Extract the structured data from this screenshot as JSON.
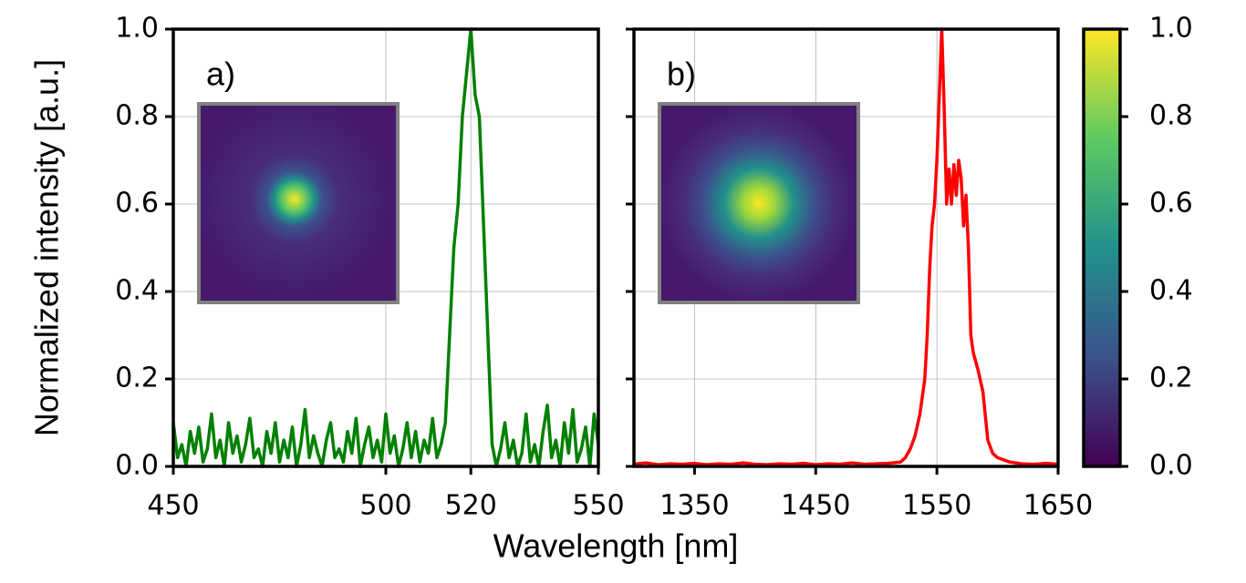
{
  "xlabel": "Wavelength [nm]",
  "ylabel": "Normalized intensity [a.u.]",
  "chart_data": [
    {
      "type": "line",
      "annotation": "a)",
      "color": "#008000",
      "grid": true,
      "xlim": [
        450,
        550
      ],
      "xticks": [
        450,
        500,
        520,
        550
      ],
      "ylim": [
        0,
        1
      ],
      "yticks": [
        {
          "value": 0,
          "label": "0.0"
        },
        {
          "value": 0.2,
          "label": "0.2"
        },
        {
          "value": 0.4,
          "label": "0.4"
        },
        {
          "value": 0.6,
          "label": "0.6"
        },
        {
          "value": 0.8,
          "label": "0.8"
        },
        {
          "value": 1,
          "label": "1.0"
        }
      ],
      "ytick_labels": true,
      "x": [
        450,
        451,
        452,
        453,
        454,
        455,
        456,
        457,
        458,
        459,
        460,
        461,
        462,
        463,
        464,
        465,
        466,
        467,
        468,
        469,
        470,
        471,
        472,
        473,
        474,
        475,
        476,
        477,
        478,
        479,
        480,
        481,
        482,
        483,
        484,
        485,
        486,
        487,
        488,
        489,
        490,
        491,
        492,
        493,
        494,
        495,
        496,
        497,
        498,
        499,
        500,
        501,
        502,
        503,
        504,
        505,
        506,
        507,
        508,
        509,
        510,
        511,
        512,
        513,
        514,
        515,
        516,
        517,
        518,
        519,
        520,
        521,
        522,
        523,
        524,
        525,
        526,
        527,
        528,
        529,
        530,
        531,
        532,
        533,
        534,
        535,
        536,
        537,
        538,
        539,
        540,
        541,
        542,
        543,
        544,
        545,
        546,
        547,
        548,
        549,
        550
      ],
      "values": [
        0.1,
        0.02,
        0.05,
        0.0,
        0.08,
        0.03,
        0.09,
        0.01,
        0.04,
        0.12,
        0.02,
        0.06,
        0.0,
        0.1,
        0.03,
        0.07,
        0.01,
        0.05,
        0.11,
        0.02,
        0.04,
        0.0,
        0.08,
        0.03,
        0.1,
        0.01,
        0.06,
        0.02,
        0.09,
        0.0,
        0.05,
        0.13,
        0.02,
        0.07,
        0.03,
        0.0,
        0.06,
        0.1,
        0.02,
        0.04,
        0.01,
        0.08,
        0.03,
        0.11,
        0.0,
        0.05,
        0.09,
        0.02,
        0.06,
        0.01,
        0.12,
        0.03,
        0.07,
        0.0,
        0.04,
        0.1,
        0.02,
        0.08,
        0.01,
        0.06,
        0.03,
        0.11,
        0.02,
        0.05,
        0.1,
        0.3,
        0.5,
        0.6,
        0.8,
        0.9,
        1.0,
        0.85,
        0.8,
        0.55,
        0.3,
        0.05,
        0.0,
        0.04,
        0.1,
        0.02,
        0.06,
        0.0,
        0.03,
        0.12,
        0.01,
        0.05,
        0.0,
        0.08,
        0.14,
        0.02,
        0.06,
        0.0,
        0.1,
        0.03,
        0.13,
        0.01,
        0.04,
        0.09,
        0.0,
        0.12,
        0.05
      ]
    },
    {
      "type": "line",
      "annotation": "b)",
      "color": "#ff0000",
      "grid": true,
      "xlim": [
        1300,
        1650
      ],
      "xticks": [
        1350,
        1450,
        1550,
        1650
      ],
      "ylim": [
        0,
        1
      ],
      "yticks": [
        0,
        0.2,
        0.4,
        0.6,
        0.8,
        1
      ],
      "ytick_labels": false,
      "x": [
        1300,
        1310,
        1320,
        1330,
        1340,
        1350,
        1360,
        1370,
        1380,
        1390,
        1400,
        1410,
        1420,
        1430,
        1440,
        1450,
        1460,
        1470,
        1480,
        1490,
        1500,
        1510,
        1520,
        1524,
        1528,
        1532,
        1536,
        1540,
        1542,
        1544,
        1546,
        1548,
        1550,
        1552,
        1554,
        1556,
        1558,
        1560,
        1562,
        1564,
        1566,
        1568,
        1570,
        1572,
        1574,
        1576,
        1578,
        1580,
        1584,
        1588,
        1592,
        1596,
        1600,
        1610,
        1620,
        1630,
        1640,
        1650
      ],
      "values": [
        0.005,
        0.008,
        0.004,
        0.006,
        0.005,
        0.007,
        0.004,
        0.006,
        0.005,
        0.008,
        0.005,
        0.004,
        0.006,
        0.005,
        0.007,
        0.004,
        0.006,
        0.005,
        0.008,
        0.005,
        0.006,
        0.007,
        0.01,
        0.02,
        0.04,
        0.07,
        0.12,
        0.2,
        0.3,
        0.45,
        0.55,
        0.6,
        0.7,
        0.85,
        1.0,
        0.82,
        0.6,
        0.68,
        0.6,
        0.69,
        0.62,
        0.7,
        0.66,
        0.55,
        0.62,
        0.5,
        0.3,
        0.26,
        0.22,
        0.17,
        0.06,
        0.03,
        0.02,
        0.01,
        0.006,
        0.005,
        0.007,
        0.005
      ]
    },
    {
      "type": "colorbar",
      "colormap": [
        "#440154",
        "#3b528b",
        "#21918c",
        "#5ec962",
        "#fde725"
      ],
      "ylim": [
        0,
        1
      ],
      "yticks": [
        {
          "value": 0,
          "label": "0.0"
        },
        {
          "value": 0.2,
          "label": "0.2"
        },
        {
          "value": 0.4,
          "label": "0.4"
        },
        {
          "value": 0.6,
          "label": "0.6"
        },
        {
          "value": 0.8,
          "label": "0.8"
        },
        {
          "value": 1,
          "label": "1.0"
        }
      ]
    }
  ]
}
